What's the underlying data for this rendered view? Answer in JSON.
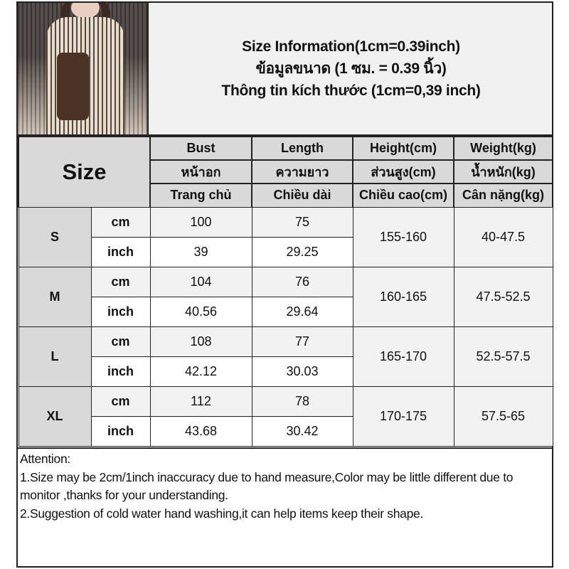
{
  "header": {
    "title_lines": [
      "Size Information(1cm=0.39inch)",
      "ข้อมูลขนาด (1 ซม. = 0.39 นิ้ว)",
      "Thông tin kích thước (1cm=0,39 inch)"
    ]
  },
  "table": {
    "size_label": "Size",
    "columns": [
      {
        "en": "Bust",
        "th": "หน้าอก",
        "vi": "Trang chủ"
      },
      {
        "en": "Length",
        "th": "ความยาว",
        "vi": "Chiều dài"
      },
      {
        "en": "Height(cm)",
        "th": "ส่วนสูง(cm)",
        "vi": "Chiều cao(cm)"
      },
      {
        "en": "Weight(kg)",
        "th": "น้ำหนัก(kg)",
        "vi": "Cân nặng(kg)"
      }
    ],
    "unit_cm": "cm",
    "unit_inch": "inch",
    "rows": [
      {
        "size": "S",
        "cm": [
          "100",
          "75"
        ],
        "inch": [
          "39",
          "29.25"
        ],
        "height": "155-160",
        "weight": "40-47.5"
      },
      {
        "size": "M",
        "cm": [
          "104",
          "76"
        ],
        "inch": [
          "40.56",
          "29.64"
        ],
        "height": "160-165",
        "weight": "47.5-52.5"
      },
      {
        "size": "L",
        "cm": [
          "108",
          "77"
        ],
        "inch": [
          "42.12",
          "30.03"
        ],
        "height": "165-170",
        "weight": "52.5-57.5"
      },
      {
        "size": "XL",
        "cm": [
          "112",
          "78"
        ],
        "inch": [
          "43.68",
          "30.42"
        ],
        "height": "170-175",
        "weight": "57.5-65"
      }
    ]
  },
  "attention": {
    "lines": [
      "Attention:",
      "1.Size may be 2cm/1inch inaccuracy due to hand measure,Color may be little different due to monitor ,thanks for your understanding.",
      "2.Suggestion of cold water hand washing,it can help items keep their shape."
    ]
  }
}
